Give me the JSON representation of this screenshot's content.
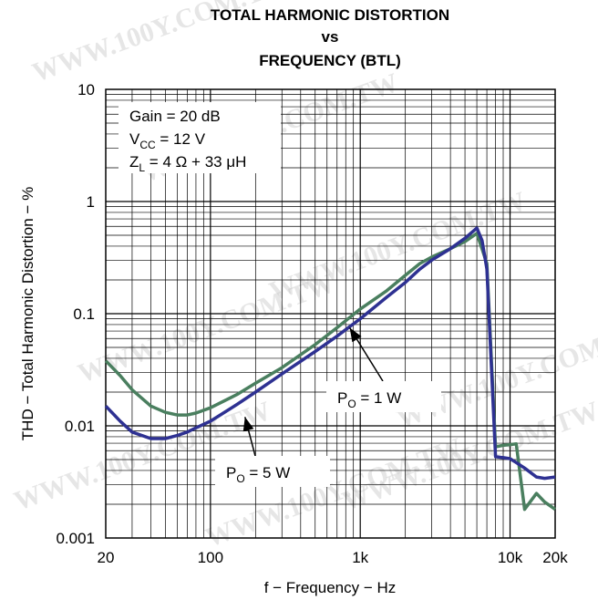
{
  "chart_data": {
    "type": "line",
    "title_lines": [
      "TOTAL HARMONIC DISTORTION",
      "vs",
      "FREQUENCY (BTL)"
    ],
    "xlabel": "f − Frequency − Hz",
    "ylabel": "THD − Total Harmonic Distortion − %",
    "x_scale": "log",
    "y_scale": "log",
    "xlim": [
      20,
      20000
    ],
    "ylim": [
      0.001,
      10
    ],
    "x_tick_labels": [
      {
        "value": 20,
        "label": "20"
      },
      {
        "value": 100,
        "label": "100"
      },
      {
        "value": 1000,
        "label": "1k"
      },
      {
        "value": 10000,
        "label": "10k"
      },
      {
        "value": 20000,
        "label": "20k"
      }
    ],
    "y_tick_labels": [
      {
        "value": 10,
        "label": "10"
      },
      {
        "value": 1,
        "label": "1"
      },
      {
        "value": 0.1,
        "label": "0.1"
      },
      {
        "value": 0.01,
        "label": "0.01"
      },
      {
        "value": 0.001,
        "label": "0.001"
      }
    ],
    "grid": true,
    "conditions": {
      "gain": {
        "main": "Gain = 20 dB"
      },
      "vcc": {
        "pre": "V",
        "sub": "CC",
        "post": " = 12 V"
      },
      "zl": {
        "pre": "Z",
        "sub": "L",
        "post": " = 4 Ω + 33 μH"
      }
    },
    "series": [
      {
        "name_pre": "P",
        "name_sub": "O",
        "name_post": " = 1 W",
        "color": "#4a7f5f",
        "points": [
          [
            20,
            0.038
          ],
          [
            25,
            0.028
          ],
          [
            30,
            0.021
          ],
          [
            40,
            0.015
          ],
          [
            50,
            0.0132
          ],
          [
            60,
            0.0125
          ],
          [
            70,
            0.0125
          ],
          [
            80,
            0.013
          ],
          [
            100,
            0.0145
          ],
          [
            150,
            0.019
          ],
          [
            200,
            0.024
          ],
          [
            300,
            0.033
          ],
          [
            500,
            0.053
          ],
          [
            700,
            0.075
          ],
          [
            1000,
            0.11
          ],
          [
            1500,
            0.16
          ],
          [
            2000,
            0.22
          ],
          [
            2500,
            0.28
          ],
          [
            3000,
            0.32
          ],
          [
            4000,
            0.38
          ],
          [
            5000,
            0.44
          ],
          [
            6000,
            0.52
          ],
          [
            7000,
            0.28
          ],
          [
            8000,
            0.0065
          ],
          [
            9000,
            0.0067
          ],
          [
            10000,
            0.0068
          ],
          [
            11000,
            0.0069
          ],
          [
            12500,
            0.0018
          ],
          [
            15000,
            0.0025
          ],
          [
            17000,
            0.0021
          ],
          [
            20000,
            0.0018
          ]
        ]
      },
      {
        "name_pre": "P",
        "name_sub": "O",
        "name_post": " = 5 W",
        "color": "#2e3192",
        "points": [
          [
            20,
            0.015
          ],
          [
            25,
            0.011
          ],
          [
            30,
            0.0088
          ],
          [
            40,
            0.0077
          ],
          [
            50,
            0.0077
          ],
          [
            60,
            0.0082
          ],
          [
            70,
            0.0088
          ],
          [
            80,
            0.0096
          ],
          [
            100,
            0.011
          ],
          [
            150,
            0.0155
          ],
          [
            200,
            0.02
          ],
          [
            300,
            0.029
          ],
          [
            500,
            0.046
          ],
          [
            700,
            0.063
          ],
          [
            1000,
            0.09
          ],
          [
            1500,
            0.14
          ],
          [
            2000,
            0.19
          ],
          [
            2500,
            0.25
          ],
          [
            3000,
            0.3
          ],
          [
            4000,
            0.38
          ],
          [
            5000,
            0.47
          ],
          [
            6000,
            0.58
          ],
          [
            6500,
            0.45
          ],
          [
            7000,
            0.25
          ],
          [
            8000,
            0.0053
          ],
          [
            9000,
            0.0052
          ],
          [
            10000,
            0.0051
          ],
          [
            11000,
            0.0047
          ],
          [
            12500,
            0.0042
          ],
          [
            15000,
            0.0035
          ],
          [
            17000,
            0.0034
          ],
          [
            20000,
            0.0035
          ]
        ]
      }
    ],
    "annotations": [
      {
        "series": 0,
        "text_pre": "P",
        "text_sub": "O",
        "text_post": " = 1 W",
        "arrow_to": [
          850,
          0.075
        ]
      },
      {
        "series": 1,
        "text_pre": "P",
        "text_sub": "O",
        "text_post": " = 5 W",
        "arrow_to": [
          170,
          0.012
        ]
      }
    ]
  },
  "watermark": "WWW.100Y.COM.TW"
}
